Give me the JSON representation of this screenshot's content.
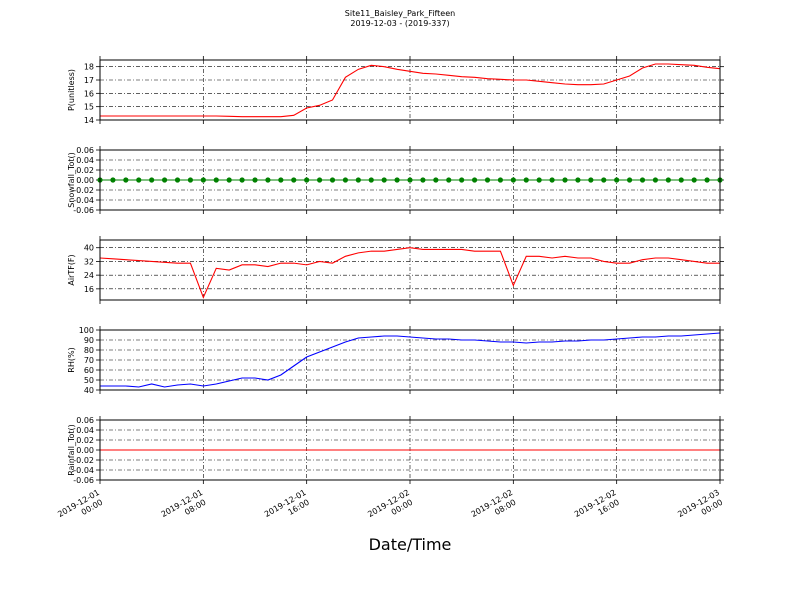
{
  "title": "Site11_Baisley_Park_Fifteen",
  "subtitle": "2019-12-03 - (2019-337)",
  "x_axis": {
    "label": "Date/Time",
    "xlim": [
      "2019-12-01 00:00",
      "2019-12-03 00:00"
    ],
    "xticks": [
      {
        "value": "2019-12-01 00:00",
        "label": "2019-12-01\n00:00"
      },
      {
        "value": "2019-12-01 08:00",
        "label": "2019-12-01\n08:00"
      },
      {
        "value": "2019-12-01 16:00",
        "label": "2019-12-01\n16:00"
      },
      {
        "value": "2019-12-02 00:00",
        "label": "2019-12-02\n00:00"
      },
      {
        "value": "2019-12-02 08:00",
        "label": "2019-12-02\n08:00"
      },
      {
        "value": "2019-12-02 16:00",
        "label": "2019-12-02\n16:00"
      },
      {
        "value": "2019-12-03 00:00",
        "label": "2019-12-03\n00:00"
      }
    ],
    "x": [
      "2019-12-01 00:00",
      "2019-12-01 01:00",
      "2019-12-01 02:00",
      "2019-12-01 03:00",
      "2019-12-01 04:00",
      "2019-12-01 05:00",
      "2019-12-01 06:00",
      "2019-12-01 07:00",
      "2019-12-01 08:00",
      "2019-12-01 09:00",
      "2019-12-01 10:00",
      "2019-12-01 11:00",
      "2019-12-01 12:00",
      "2019-12-01 13:00",
      "2019-12-01 14:00",
      "2019-12-01 15:00",
      "2019-12-01 16:00",
      "2019-12-01 17:00",
      "2019-12-01 18:00",
      "2019-12-01 19:00",
      "2019-12-01 20:00",
      "2019-12-01 21:00",
      "2019-12-01 22:00",
      "2019-12-01 23:00",
      "2019-12-02 00:00",
      "2019-12-02 01:00",
      "2019-12-02 02:00",
      "2019-12-02 03:00",
      "2019-12-02 04:00",
      "2019-12-02 05:00",
      "2019-12-02 06:00",
      "2019-12-02 07:00",
      "2019-12-02 08:00",
      "2019-12-02 09:00",
      "2019-12-02 10:00",
      "2019-12-02 11:00",
      "2019-12-02 12:00",
      "2019-12-02 13:00",
      "2019-12-02 14:00",
      "2019-12-02 15:00",
      "2019-12-02 16:00",
      "2019-12-02 17:00",
      "2019-12-02 18:00",
      "2019-12-02 19:00",
      "2019-12-02 20:00",
      "2019-12-02 21:00",
      "2019-12-02 22:00",
      "2019-12-02 23:00",
      "2019-12-03 00:00"
    ]
  },
  "chart_data": [
    {
      "type": "line",
      "ylabel": "P(unitless)",
      "color": "#ff0000",
      "grid": true,
      "ylim": [
        14,
        18.5
      ],
      "yticks": [
        14,
        15,
        16,
        17,
        18
      ],
      "values": [
        14.3,
        14.3,
        14.3,
        14.3,
        14.3,
        14.3,
        14.3,
        14.3,
        14.3,
        14.3,
        14.28,
        14.25,
        14.25,
        14.25,
        14.25,
        14.35,
        14.9,
        15.1,
        15.5,
        17.2,
        17.8,
        18.1,
        18.0,
        17.8,
        17.65,
        17.5,
        17.45,
        17.35,
        17.25,
        17.2,
        17.1,
        17.05,
        17.0,
        17.0,
        16.9,
        16.8,
        16.7,
        16.65,
        16.65,
        16.7,
        17.0,
        17.3,
        17.9,
        18.2,
        18.2,
        18.15,
        18.1,
        17.95,
        17.85
      ]
    },
    {
      "type": "line",
      "ylabel": "Snowfall_Tot()",
      "color": "#008000",
      "marker": true,
      "grid": true,
      "ylim": [
        -0.06,
        0.06
      ],
      "yticks": [
        {
          "value": -0.06,
          "label": "-0.06"
        },
        {
          "value": -0.04,
          "label": "-0.04"
        },
        {
          "value": -0.02,
          "label": "-0.02"
        },
        {
          "value": 0,
          "label": "0.00"
        },
        {
          "value": 0.02,
          "label": "0.02"
        },
        {
          "value": 0.04,
          "label": "0.04"
        },
        {
          "value": 0.06,
          "label": "0.06"
        }
      ],
      "values": [
        0,
        0,
        0,
        0,
        0,
        0,
        0,
        0,
        0,
        0,
        0,
        0,
        0,
        0,
        0,
        0,
        0,
        0,
        0,
        0,
        0,
        0,
        0,
        0,
        0,
        0,
        0,
        0,
        0,
        0,
        0,
        0,
        0,
        0,
        0,
        0,
        0,
        0,
        0,
        0,
        0,
        0,
        0,
        0,
        0,
        0,
        0,
        0,
        0
      ]
    },
    {
      "type": "line",
      "ylabel": "AirTF(F)",
      "color": "#ff0000",
      "grid": true,
      "ylim": [
        9.5,
        44.5
      ],
      "yticks": [
        16,
        24,
        32,
        40
      ],
      "values": [
        34,
        33.5,
        33,
        32.5,
        32,
        31.5,
        31,
        31,
        11,
        28,
        27,
        30,
        30,
        29,
        31,
        31,
        30,
        32,
        31,
        35,
        37,
        38,
        38,
        39,
        40,
        39,
        39,
        39,
        39,
        38,
        38,
        38,
        18,
        35,
        35,
        34,
        35,
        34,
        34,
        32,
        31,
        31,
        33,
        34,
        34,
        33,
        32,
        31,
        31
      ]
    },
    {
      "type": "line",
      "ylabel": "RH(%)",
      "color": "#0000ff",
      "grid": true,
      "ylim": [
        40,
        100
      ],
      "yticks": [
        40,
        50,
        60,
        70,
        80,
        90,
        100
      ],
      "values": [
        44,
        44,
        44,
        43,
        46,
        43,
        45,
        46,
        44,
        46,
        49,
        52,
        52,
        50,
        55,
        64,
        73,
        78,
        83,
        88,
        92,
        93,
        94,
        94,
        93,
        92,
        91,
        91,
        90,
        90,
        89,
        88,
        88,
        87,
        88,
        88,
        89,
        89,
        90,
        90,
        91,
        92,
        93,
        93,
        94,
        94,
        95,
        96,
        97
      ]
    },
    {
      "type": "line",
      "ylabel": "Rainfall_Tot()",
      "color": "#ff0000",
      "grid": true,
      "ylim": [
        -0.06,
        0.06
      ],
      "yticks": [
        {
          "value": -0.06,
          "label": "-0.06"
        },
        {
          "value": -0.04,
          "label": "-0.04"
        },
        {
          "value": -0.02,
          "label": "-0.02"
        },
        {
          "value": 0,
          "label": "0.00"
        },
        {
          "value": 0.02,
          "label": "0.02"
        },
        {
          "value": 0.04,
          "label": "0.04"
        },
        {
          "value": 0.06,
          "label": "0.06"
        }
      ],
      "values": [
        0,
        0,
        0,
        0,
        0,
        0,
        0,
        0,
        0,
        0,
        0,
        0,
        0,
        0,
        0,
        0,
        0,
        0,
        0,
        0,
        0,
        0,
        0,
        0,
        0,
        0,
        0,
        0,
        0,
        0,
        0,
        0,
        0,
        0,
        0,
        0,
        0,
        0,
        0,
        0,
        0,
        0,
        0,
        0,
        0,
        0,
        0,
        0,
        0
      ]
    }
  ]
}
